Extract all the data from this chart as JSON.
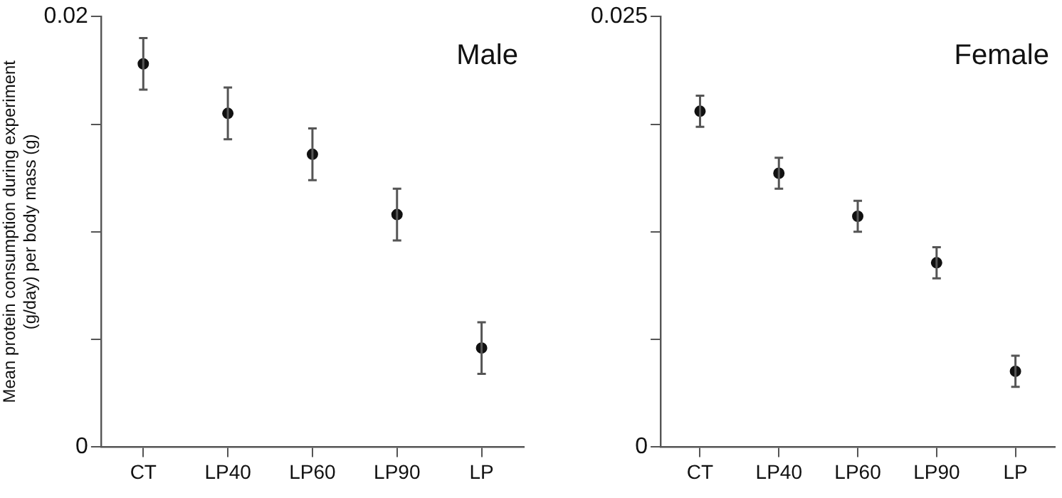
{
  "chart_data": [
    {
      "type": "scatter",
      "title": "Male",
      "ylabel": "Mean protein consumption during experiment\n(g/day) per body mass (g)",
      "categories": [
        "CT",
        "LP40",
        "LP60",
        "LP90",
        "LP"
      ],
      "values": [
        0.0178,
        0.0155,
        0.0136,
        0.0108,
        0.0046
      ],
      "errors": [
        0.0012,
        0.0012,
        0.0012,
        0.0012,
        0.0012
      ],
      "color": "#111111",
      "marker": "circle",
      "grid": false,
      "ylim": [
        0,
        0.02
      ],
      "yticks": [
        0,
        {
          "value": 0.005,
          "label": null
        },
        {
          "value": 0.01,
          "label": null
        },
        {
          "value": 0.015,
          "label": null
        },
        0.02
      ]
    },
    {
      "type": "scatter",
      "title": "Female",
      "categories": [
        "CT",
        "LP40",
        "LP60",
        "LP90",
        "LP"
      ],
      "values": [
        0.0195,
        0.0159,
        0.0134,
        0.0107,
        0.0044
      ],
      "errors": [
        0.0009,
        0.0009,
        0.0009,
        0.0009,
        0.0009
      ],
      "color": "#111111",
      "marker": "circle",
      "grid": false,
      "ylim": [
        0,
        0.025
      ],
      "yticks": [
        0,
        {
          "value": 0.00625,
          "label": null
        },
        {
          "value": 0.0125,
          "label": null
        },
        {
          "value": 0.01875,
          "label": null
        },
        0.025
      ]
    }
  ]
}
